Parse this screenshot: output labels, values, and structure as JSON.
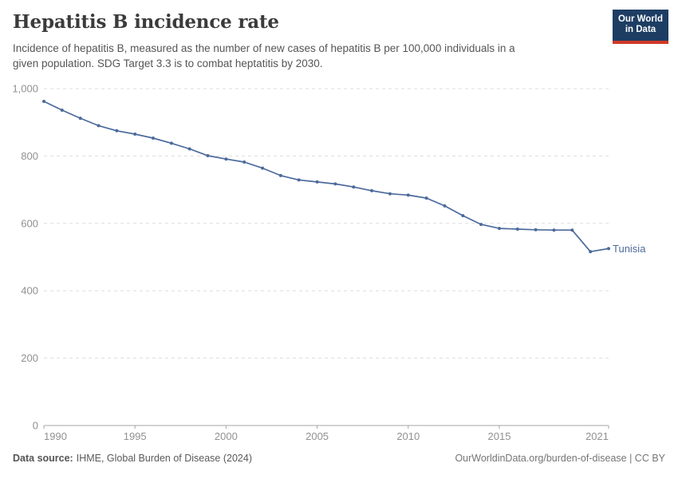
{
  "header": {
    "title": "Hepatitis B incidence rate",
    "subtitle_line1": "Incidence of hepatitis B, measured as the number of new cases of hepatitis B per 100,000 individuals in a",
    "subtitle_line2": "given population. SDG Target 3.3 is to combat heptatitis by 2030.",
    "logo_line1": "Our World",
    "logo_line2": "in Data"
  },
  "chart_data": {
    "type": "line",
    "title": "Hepatitis B incidence rate",
    "xlabel": "",
    "ylabel": "",
    "xlim": [
      1990,
      2021
    ],
    "ylim": [
      0,
      1000
    ],
    "grid": "horizontal-dashed",
    "legend": "end-of-line-label",
    "x_ticks": [
      1990,
      1995,
      2000,
      2005,
      2010,
      2015,
      2021
    ],
    "y_ticks": [
      0,
      200,
      400,
      600,
      800,
      1000
    ],
    "y_tick_labels": [
      "0",
      "200",
      "400",
      "600",
      "800",
      "1,000"
    ],
    "x": [
      1990,
      1991,
      1992,
      1993,
      1994,
      1995,
      1996,
      1997,
      1998,
      1999,
      2000,
      2001,
      2002,
      2003,
      2004,
      2005,
      2006,
      2007,
      2008,
      2009,
      2010,
      2011,
      2012,
      2013,
      2014,
      2015,
      2016,
      2017,
      2018,
      2019,
      2020,
      2021
    ],
    "series": [
      {
        "name": "Tunisia",
        "color": "#4C6A9C",
        "values": [
          962,
          936,
          912,
          890,
          875,
          865,
          853,
          838,
          821,
          801,
          791,
          782,
          764,
          742,
          729,
          723,
          717,
          708,
          697,
          688,
          684,
          675,
          652,
          623,
          597,
          585,
          583,
          581,
          580,
          580,
          516,
          525
        ]
      }
    ]
  },
  "footer": {
    "source_label": "Data source:",
    "source_text": "IHME, Global Burden of Disease (2024)",
    "credit": "OurWorldinData.org/burden-of-disease | CC BY"
  },
  "colors": {
    "line": "#4C6A9C",
    "grid": "#dddddd",
    "axis": "#a5a5a5",
    "tick_label": "#919191",
    "title": "#3b3b3b",
    "subtitle": "#555555",
    "logo_bg": "#1d3d63",
    "logo_red": "#cf3a27"
  }
}
